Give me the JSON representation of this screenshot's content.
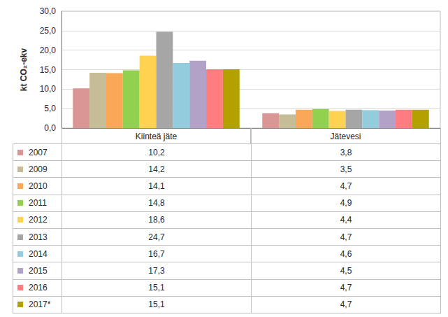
{
  "chart_data": {
    "type": "bar",
    "y_label": "kt CO₂-ekv",
    "categories": [
      "Kiinteä jäte",
      "Jätevesi"
    ],
    "series": [
      {
        "name": "2007",
        "color": "#d99694",
        "values": [
          10.2,
          3.8
        ],
        "value_labels": [
          "10,2",
          "3,8"
        ]
      },
      {
        "name": "2009",
        "color": "#c4bd97",
        "values": [
          14.2,
          3.5
        ],
        "value_labels": [
          "14,2",
          "3,5"
        ]
      },
      {
        "name": "2010",
        "color": "#f9a857",
        "values": [
          14.1,
          4.7
        ],
        "value_labels": [
          "14,1",
          "4,7"
        ]
      },
      {
        "name": "2011",
        "color": "#92d050",
        "values": [
          14.8,
          4.9
        ],
        "value_labels": [
          "14,8",
          "4,9"
        ]
      },
      {
        "name": "2012",
        "color": "#ffd34f",
        "values": [
          18.6,
          4.4
        ],
        "value_labels": [
          "18,6",
          "4,4"
        ]
      },
      {
        "name": "2013",
        "color": "#a6a6a6",
        "values": [
          24.7,
          4.7
        ],
        "value_labels": [
          "24,7",
          "4,7"
        ]
      },
      {
        "name": "2014",
        "color": "#93cddd",
        "values": [
          16.7,
          4.6
        ],
        "value_labels": [
          "16,7",
          "4,6"
        ]
      },
      {
        "name": "2015",
        "color": "#b3a2c7",
        "values": [
          17.3,
          4.5
        ],
        "value_labels": [
          "17,3",
          "4,5"
        ]
      },
      {
        "name": "2016",
        "color": "#ff7c80",
        "values": [
          15.1,
          4.7
        ],
        "value_labels": [
          "15,1",
          "4,7"
        ]
      },
      {
        "name": "2017*",
        "color": "#b3a100",
        "values": [
          15.1,
          4.7
        ],
        "value_labels": [
          "15,1",
          "4,7"
        ]
      }
    ],
    "ylim": [
      0,
      30
    ],
    "yticks": [
      {
        "value": 0,
        "label": "0,0"
      },
      {
        "value": 5,
        "label": "5,0"
      },
      {
        "value": 10,
        "label": "10,0"
      },
      {
        "value": 15,
        "label": "15,0"
      },
      {
        "value": 20,
        "label": "20,0"
      },
      {
        "value": 25,
        "label": "25,0"
      },
      {
        "value": 30,
        "label": "30,0"
      }
    ],
    "grid": true
  }
}
